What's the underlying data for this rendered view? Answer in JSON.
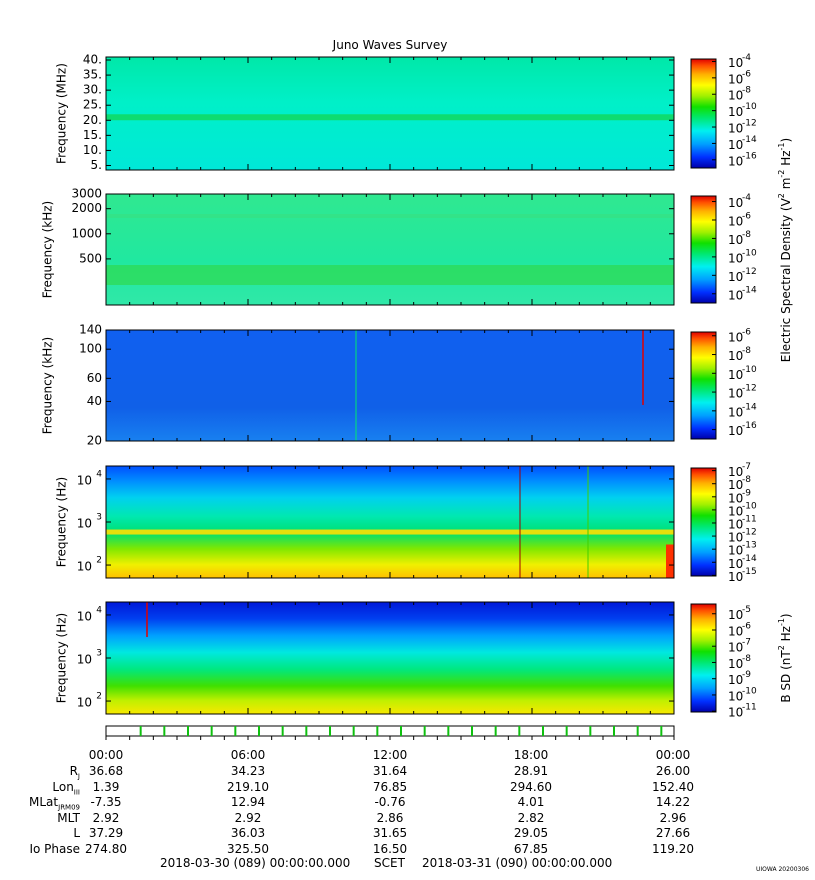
{
  "title": "Juno Waves Survey",
  "colorbar_colors": [
    "#0000aa",
    "#0030ff",
    "#00a0ff",
    "#00f0f0",
    "#00e870",
    "#10e000",
    "#a0f000",
    "#ffff00",
    "#ffb000",
    "#ff5000",
    "#e00000"
  ],
  "chart_data": [
    {
      "type": "heatmap",
      "panel": 1,
      "ylabel": "Frequency (MHz)",
      "yscale": "linear",
      "ylim": [
        3.5,
        41
      ],
      "yticks": [
        "40.",
        "35.",
        "30.",
        "25.",
        "20.",
        "15.",
        "10.",
        "5."
      ],
      "ytick_values": [
        40,
        35,
        30,
        25,
        20,
        15,
        10,
        5
      ],
      "colorbar_ticks": [
        "-4",
        "-6",
        "-8",
        "-10",
        "-12",
        "-14",
        "-16"
      ],
      "colorbar_range": [
        -17,
        -3.7
      ],
      "colorbar_label": "",
      "dominant_color": "#00f0c0",
      "features": "band at 21 MHz"
    },
    {
      "type": "heatmap",
      "panel": 2,
      "ylabel": "Frequency (kHz)",
      "yscale": "log",
      "ylim": [
        140,
        3000
      ],
      "yticks": [
        "3000",
        "2000",
        "1000",
        "500"
      ],
      "ytick_values": [
        3000,
        2000,
        1000,
        500
      ],
      "colorbar_ticks": [
        "-4",
        "-6",
        "-8",
        "-10",
        "-12",
        "-14"
      ],
      "colorbar_range": [
        -15,
        -3.4
      ],
      "colorbar_label": "",
      "dominant_color": "#20e890",
      "features": "emission band near 200-300 kHz"
    },
    {
      "type": "heatmap",
      "panel": 3,
      "ylabel": "Frequency (kHz)",
      "yscale": "log",
      "ylim": [
        20,
        140
      ],
      "yticks": [
        "140",
        "100",
        "60",
        "40",
        "20"
      ],
      "ytick_values": [
        140,
        100,
        60,
        40,
        20
      ],
      "colorbar_ticks": [
        "-6",
        "-8",
        "-10",
        "-12",
        "-14",
        "-16"
      ],
      "colorbar_range": [
        -17,
        -5.6
      ],
      "colorbar_label": "Electric Spectral Density (V",
      "colorbar_label_sup1": "2",
      "colorbar_label_mid": " m",
      "colorbar_label_sup2": "-2",
      "colorbar_label_tail": " Hz",
      "colorbar_label_sup3": "-1",
      "colorbar_label_end": ")",
      "dominant_color": "#1060e8"
    },
    {
      "type": "heatmap",
      "panel": 4,
      "ylabel": "Frequency (Hz)",
      "yscale": "log",
      "ylim": [
        50,
        20000
      ],
      "yticks": [
        "10",
        "10",
        "10"
      ],
      "ytick_exps": [
        "4",
        "3",
        "2"
      ],
      "ytick_values": [
        10000,
        1000,
        100
      ],
      "colorbar_ticks": [
        "-7",
        "-8",
        "-9",
        "-10",
        "-11",
        "-12",
        "-13",
        "-14",
        "-15"
      ],
      "colorbar_range": [
        -15.05,
        -6.8
      ],
      "colorbar_label": "",
      "dominant_color": "#20d8b0"
    },
    {
      "type": "heatmap",
      "panel": 5,
      "ylabel": "Frequency (Hz)",
      "yscale": "log",
      "ylim": [
        50,
        20000
      ],
      "yticks": [
        "10",
        "10",
        "10"
      ],
      "ytick_exps": [
        "4",
        "3",
        "2"
      ],
      "ytick_values": [
        10000,
        1000,
        100
      ],
      "colorbar_ticks": [
        "-5",
        "-6",
        "-7",
        "-8",
        "-9",
        "-10",
        "-11"
      ],
      "colorbar_range": [
        -11.05,
        -4.4
      ],
      "colorbar_label": "B SD (nT",
      "colorbar_label_sup1": "2",
      "colorbar_label_mid": " Hz",
      "colorbar_label_sup2": "-1",
      "colorbar_label_tail": ")",
      "dominant_color": "#00e880"
    }
  ],
  "time_axis": {
    "labels": [
      "00:00",
      "06:00",
      "12:00",
      "18:00",
      "00:00"
    ],
    "rows": [
      {
        "label": "R",
        "sub": "J",
        "values": [
          "36.68",
          "34.23",
          "31.64",
          "28.91",
          "26.00"
        ]
      },
      {
        "label": "Lon",
        "sub": "III",
        "values": [
          "1.39",
          "219.10",
          "76.85",
          "294.60",
          "152.40"
        ]
      },
      {
        "label": "MLat",
        "sub": "JRM09",
        "values": [
          "-7.35",
          "12.94",
          "-0.76",
          "4.01",
          "14.22"
        ]
      },
      {
        "label": "MLT",
        "sub": "",
        "values": [
          "2.92",
          "2.92",
          "2.86",
          "2.82",
          "2.96"
        ]
      },
      {
        "label": "L",
        "sub": "",
        "values": [
          "37.29",
          "36.03",
          "31.65",
          "29.05",
          "27.66"
        ]
      },
      {
        "label": "Io Phase",
        "sub": "",
        "values": [
          "274.80",
          "325.50",
          "16.50",
          "67.85",
          "119.20"
        ]
      }
    ]
  },
  "footer": {
    "start": "2018-03-30 (089) 00:00:00.000",
    "scet": "SCET",
    "end": "2018-03-31 (090) 00:00:00.000"
  },
  "credit": "UIOWA 20200306"
}
